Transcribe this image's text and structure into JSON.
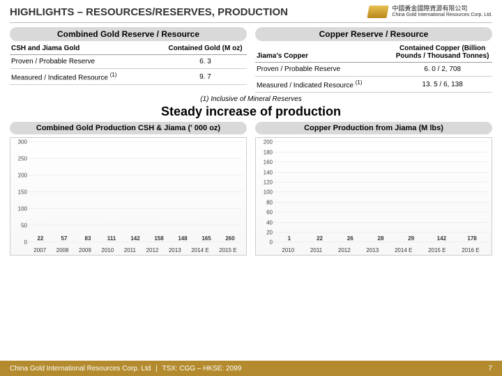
{
  "header": {
    "title": "HIGHLIGHTS – RESOURCES/RESERVES, PRODUCTION",
    "company_cn": "中國黃金國際資源有限公司",
    "company_en": "China Gold International Resources Corp. Ltd."
  },
  "tables": {
    "gold": {
      "title": "Combined Gold Reserve / Resource",
      "col1": "CSH and Jiama Gold",
      "col2": "Contained Gold (M oz)",
      "rows": [
        {
          "label": "Proven / Probable Reserve",
          "val": "6. 3"
        },
        {
          "label": "Measured / Indicated Resource ",
          "sup": "(1)",
          "val": "9. 7"
        }
      ]
    },
    "copper": {
      "title": "Copper Reserve / Resource",
      "col1": "Jiama's Copper",
      "col2": "Contained Copper (Billion Pounds / Thousand Tonnes)",
      "rows": [
        {
          "label": "Proven / Probable Reserve",
          "val": "6. 0   /   2, 708"
        },
        {
          "label": "Measured / Indicated Resource ",
          "sup": "(1)",
          "val": "13. 5   /   6, 138"
        }
      ]
    }
  },
  "footnote": "(1) Inclusive of Mineral Reserves",
  "subhead": "Steady increase of production",
  "charts": {
    "gold": {
      "title": "Combined Gold Production CSH & Jiama (' 000 oz)",
      "ymax": 300,
      "ystep": 50,
      "categories": [
        "2007",
        "2008",
        "2009",
        "2010",
        "2011",
        "2012",
        "2013",
        "2014 E",
        "2015 E"
      ],
      "values": [
        22,
        57,
        83,
        111,
        142,
        158,
        148,
        165,
        260
      ],
      "bar_color": "#b8902e"
    },
    "copper": {
      "title": "Copper Production from Jiama (M lbs)",
      "ymax": 200,
      "ystep": 20,
      "categories": [
        "2010",
        "2011",
        "2012",
        "2013",
        "2014 E",
        "2015 E",
        "2016 E"
      ],
      "values": [
        1,
        22,
        26,
        28,
        29,
        142,
        178
      ],
      "bar_color": "#5f9a59"
    }
  },
  "footer": {
    "left": "China Gold International Resources Corp. Ltd",
    "mid": "TSX: CGG – HKSE: 2099",
    "page": "7"
  }
}
